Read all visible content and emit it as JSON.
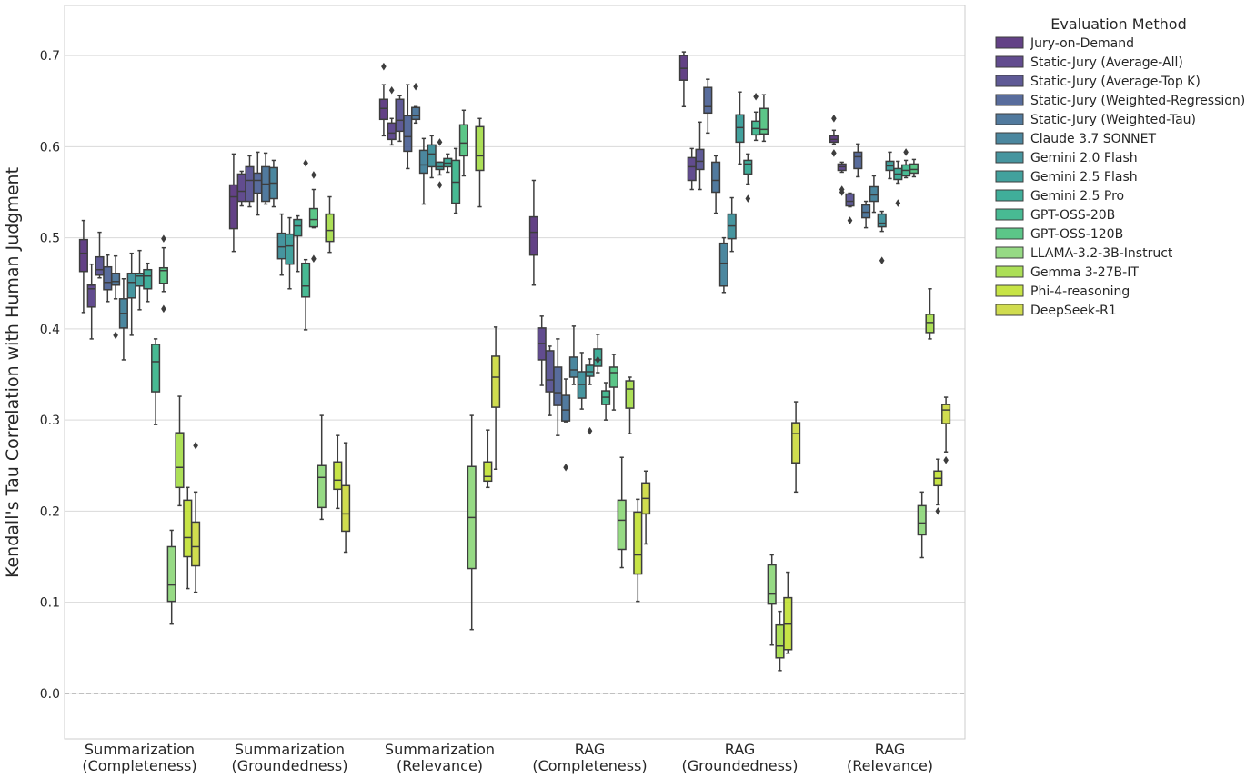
{
  "chart_data": {
    "type": "box",
    "ylabel": "Kendall's Tau Correlation with Human Judgment",
    "xlabel": "",
    "ylim": [
      -0.05,
      0.755
    ],
    "yticks": [
      0.0,
      0.1,
      0.2,
      0.3,
      0.4,
      0.5,
      0.6,
      0.7
    ],
    "ytick_labels": [
      "0.0",
      "0.1",
      "0.2",
      "0.3",
      "0.4",
      "0.5",
      "0.6",
      "0.7"
    ],
    "reference_line": 0.0,
    "grid": "horizontal",
    "legend": {
      "title": "Evaluation Method",
      "placement": "outside-right-top"
    },
    "categories": [
      [
        "Summarization",
        "(Completeness)"
      ],
      [
        "Summarization",
        "(Groundedness)"
      ],
      [
        "Summarization",
        "(Relevance)"
      ],
      [
        "RAG",
        "(Completeness)"
      ],
      [
        "RAG",
        "(Groundedness)"
      ],
      [
        "RAG",
        "(Relevance)"
      ]
    ],
    "series": [
      {
        "name": "Jury-on-Demand",
        "color": "#482071",
        "values": [
          {
            "lw": 0.418,
            "q1": 0.463,
            "med": 0.483,
            "q3": 0.498,
            "uw": 0.519,
            "out": []
          },
          {
            "lw": 0.485,
            "q1": 0.51,
            "med": 0.545,
            "q3": 0.558,
            "uw": 0.592,
            "out": []
          },
          {
            "lw": 0.612,
            "q1": 0.63,
            "med": 0.642,
            "q3": 0.652,
            "uw": 0.668,
            "out": [
              0.688
            ]
          },
          {
            "lw": 0.448,
            "q1": 0.481,
            "med": 0.506,
            "q3": 0.523,
            "uw": 0.563,
            "out": []
          },
          {
            "lw": 0.644,
            "q1": 0.673,
            "med": 0.686,
            "q3": 0.7,
            "uw": 0.704,
            "out": []
          },
          {
            "lw": 0.603,
            "q1": 0.605,
            "med": 0.608,
            "q3": 0.612,
            "uw": 0.618,
            "out": [
              0.631,
              0.593
            ]
          }
        ]
      },
      {
        "name": "Static-Jury (Average-All)",
        "color": "#472d7b",
        "values": [
          {
            "lw": 0.389,
            "q1": 0.424,
            "med": 0.444,
            "q3": 0.448,
            "uw": 0.471,
            "out": []
          },
          {
            "lw": 0.535,
            "q1": 0.54,
            "med": 0.551,
            "q3": 0.57,
            "uw": 0.573,
            "out": []
          },
          {
            "lw": 0.602,
            "q1": 0.608,
            "med": 0.615,
            "q3": 0.626,
            "uw": 0.631,
            "out": [
              0.662
            ]
          },
          {
            "lw": 0.338,
            "q1": 0.366,
            "med": 0.384,
            "q3": 0.401,
            "uw": 0.414,
            "out": []
          },
          {
            "lw": 0.553,
            "q1": 0.563,
            "med": 0.578,
            "q3": 0.588,
            "uw": 0.598,
            "out": []
          },
          {
            "lw": 0.572,
            "q1": 0.574,
            "med": 0.578,
            "q3": 0.581,
            "uw": 0.583,
            "out": [
              0.553,
              0.55
            ]
          }
        ]
      },
      {
        "name": "Static-Jury (Average-Top K)",
        "color": "#433d84",
        "values": [
          {
            "lw": 0.456,
            "q1": 0.459,
            "med": 0.465,
            "q3": 0.479,
            "uw": 0.506,
            "out": []
          },
          {
            "lw": 0.534,
            "q1": 0.54,
            "med": 0.563,
            "q3": 0.578,
            "uw": 0.59,
            "out": []
          },
          {
            "lw": 0.606,
            "q1": 0.617,
            "med": 0.629,
            "q3": 0.652,
            "uw": 0.656,
            "out": []
          },
          {
            "lw": 0.305,
            "q1": 0.331,
            "med": 0.344,
            "q3": 0.376,
            "uw": 0.381,
            "out": []
          },
          {
            "lw": 0.553,
            "q1": 0.575,
            "med": 0.584,
            "q3": 0.597,
            "uw": 0.627,
            "out": []
          },
          {
            "lw": 0.534,
            "q1": 0.535,
            "med": 0.54,
            "q3": 0.548,
            "uw": 0.549,
            "out": [
              0.519
            ]
          }
        ]
      },
      {
        "name": "Static-Jury (Weighted-Regression)",
        "color": "#3b528b",
        "values": [
          {
            "lw": 0.43,
            "q1": 0.443,
            "med": 0.451,
            "q3": 0.468,
            "uw": 0.481,
            "out": []
          },
          {
            "lw": 0.525,
            "q1": 0.549,
            "med": 0.563,
            "q3": 0.571,
            "uw": 0.594,
            "out": []
          },
          {
            "lw": 0.576,
            "q1": 0.595,
            "med": 0.611,
            "q3": 0.634,
            "uw": 0.668,
            "out": []
          },
          {
            "lw": 0.283,
            "q1": 0.316,
            "med": 0.33,
            "q3": 0.358,
            "uw": 0.389,
            "out": []
          },
          {
            "lw": 0.615,
            "q1": 0.637,
            "med": 0.644,
            "q3": 0.665,
            "uw": 0.674,
            "out": []
          },
          {
            "lw": 0.567,
            "q1": 0.576,
            "med": 0.589,
            "q3": 0.594,
            "uw": 0.603,
            "out": []
          }
        ]
      },
      {
        "name": "Static-Jury (Weighted-Tau)",
        "color": "#33638d",
        "values": [
          {
            "lw": 0.433,
            "q1": 0.448,
            "med": 0.452,
            "q3": 0.461,
            "uw": 0.48,
            "out": [
              0.393
            ]
          },
          {
            "lw": 0.537,
            "q1": 0.54,
            "med": 0.559,
            "q3": 0.578,
            "uw": 0.593,
            "out": []
          },
          {
            "lw": 0.626,
            "q1": 0.63,
            "med": 0.634,
            "q3": 0.643,
            "uw": 0.644,
            "out": [
              0.666
            ]
          },
          {
            "lw": 0.298,
            "q1": 0.299,
            "med": 0.311,
            "q3": 0.327,
            "uw": 0.345,
            "out": [
              0.248
            ]
          },
          {
            "lw": 0.527,
            "q1": 0.55,
            "med": 0.563,
            "q3": 0.583,
            "uw": 0.59,
            "out": []
          },
          {
            "lw": 0.511,
            "q1": 0.522,
            "med": 0.528,
            "q3": 0.536,
            "uw": 0.54,
            "out": []
          }
        ]
      },
      {
        "name": "Claude 3.7 SONNET",
        "color": "#2c728e",
        "values": [
          {
            "lw": 0.366,
            "q1": 0.401,
            "med": 0.417,
            "q3": 0.433,
            "uw": 0.455,
            "out": []
          },
          {
            "lw": 0.534,
            "q1": 0.543,
            "med": 0.56,
            "q3": 0.577,
            "uw": 0.585,
            "out": []
          },
          {
            "lw": 0.537,
            "q1": 0.571,
            "med": 0.58,
            "q3": 0.596,
            "uw": 0.609,
            "out": []
          },
          {
            "lw": 0.339,
            "q1": 0.347,
            "med": 0.355,
            "q3": 0.369,
            "uw": 0.403,
            "out": []
          },
          {
            "lw": 0.44,
            "q1": 0.447,
            "med": 0.472,
            "q3": 0.494,
            "uw": 0.5,
            "out": []
          },
          {
            "lw": 0.528,
            "q1": 0.54,
            "med": 0.547,
            "q3": 0.556,
            "uw": 0.568,
            "out": []
          }
        ]
      },
      {
        "name": "Gemini 2.0 Flash",
        "color": "#26828e",
        "values": [
          {
            "lw": 0.393,
            "q1": 0.434,
            "med": 0.451,
            "q3": 0.461,
            "uw": 0.483,
            "out": []
          },
          {
            "lw": 0.459,
            "q1": 0.477,
            "med": 0.49,
            "q3": 0.505,
            "uw": 0.526,
            "out": []
          },
          {
            "lw": 0.566,
            "q1": 0.578,
            "med": 0.592,
            "q3": 0.602,
            "uw": 0.612,
            "out": []
          },
          {
            "lw": 0.312,
            "q1": 0.324,
            "med": 0.339,
            "q3": 0.353,
            "uw": 0.374,
            "out": []
          },
          {
            "lw": 0.485,
            "q1": 0.499,
            "med": 0.513,
            "q3": 0.526,
            "uw": 0.544,
            "out": []
          },
          {
            "lw": 0.507,
            "q1": 0.512,
            "med": 0.516,
            "q3": 0.526,
            "uw": 0.529,
            "out": [
              0.475
            ]
          }
        ]
      },
      {
        "name": "Gemini 2.5 Flash",
        "color": "#21918c",
        "values": [
          {
            "lw": 0.421,
            "q1": 0.447,
            "med": 0.458,
            "q3": 0.461,
            "uw": 0.486,
            "out": []
          },
          {
            "lw": 0.444,
            "q1": 0.471,
            "med": 0.491,
            "q3": 0.504,
            "uw": 0.522,
            "out": []
          },
          {
            "lw": 0.569,
            "q1": 0.575,
            "med": 0.578,
            "q3": 0.583,
            "uw": 0.583,
            "out": [
              0.558,
              0.605
            ]
          },
          {
            "lw": 0.339,
            "q1": 0.348,
            "med": 0.353,
            "q3": 0.36,
            "uw": 0.367,
            "out": [
              0.288
            ]
          },
          {
            "lw": 0.581,
            "q1": 0.605,
            "med": 0.621,
            "q3": 0.635,
            "uw": 0.66,
            "out": []
          },
          {
            "lw": 0.565,
            "q1": 0.574,
            "med": 0.579,
            "q3": 0.584,
            "uw": 0.594,
            "out": []
          }
        ]
      },
      {
        "name": "Gemini 2.5 Pro",
        "color": "#1fa088",
        "values": [
          {
            "lw": 0.43,
            "q1": 0.444,
            "med": 0.458,
            "q3": 0.465,
            "uw": 0.472,
            "out": []
          },
          {
            "lw": 0.463,
            "q1": 0.502,
            "med": 0.513,
            "q3": 0.52,
            "uw": 0.524,
            "out": []
          },
          {
            "lw": 0.572,
            "q1": 0.578,
            "med": 0.582,
            "q3": 0.587,
            "uw": 0.592,
            "out": []
          },
          {
            "lw": 0.352,
            "q1": 0.359,
            "med": 0.366,
            "q3": 0.378,
            "uw": 0.394,
            "out": [
              0.366
            ]
          },
          {
            "lw": 0.559,
            "q1": 0.57,
            "med": 0.581,
            "q3": 0.585,
            "uw": 0.592,
            "out": [
              0.543
            ]
          },
          {
            "lw": 0.56,
            "q1": 0.564,
            "med": 0.57,
            "q3": 0.576,
            "uw": 0.584,
            "out": [
              0.538
            ]
          }
        ]
      },
      {
        "name": "GPT-OSS-20B",
        "color": "#28ae80",
        "values": [
          {
            "lw": 0.295,
            "q1": 0.331,
            "med": 0.364,
            "q3": 0.383,
            "uw": 0.389,
            "out": []
          },
          {
            "lw": 0.399,
            "q1": 0.435,
            "med": 0.447,
            "q3": 0.472,
            "uw": 0.476,
            "out": [
              0.582
            ]
          },
          {
            "lw": 0.527,
            "q1": 0.538,
            "med": 0.561,
            "q3": 0.585,
            "uw": 0.598,
            "out": []
          },
          {
            "lw": 0.3,
            "q1": 0.317,
            "med": 0.325,
            "q3": 0.332,
            "uw": 0.341,
            "out": []
          },
          {
            "lw": 0.607,
            "q1": 0.613,
            "med": 0.62,
            "q3": 0.628,
            "uw": 0.638,
            "out": [
              0.655
            ]
          },
          {
            "lw": 0.566,
            "q1": 0.568,
            "med": 0.574,
            "q3": 0.58,
            "uw": 0.585,
            "out": [
              0.594
            ]
          }
        ]
      },
      {
        "name": "GPT-OSS-120B",
        "color": "#3fbc73",
        "values": [
          {
            "lw": 0.441,
            "q1": 0.45,
            "med": 0.464,
            "q3": 0.467,
            "uw": 0.489,
            "out": [
              0.499,
              0.422
            ]
          },
          {
            "lw": 0.511,
            "q1": 0.512,
            "med": 0.52,
            "q3": 0.532,
            "uw": 0.553,
            "out": [
              0.569,
              0.477
            ]
          },
          {
            "lw": 0.568,
            "q1": 0.59,
            "med": 0.604,
            "q3": 0.624,
            "uw": 0.64,
            "out": []
          },
          {
            "lw": 0.311,
            "q1": 0.336,
            "med": 0.352,
            "q3": 0.358,
            "uw": 0.372,
            "out": []
          },
          {
            "lw": 0.606,
            "q1": 0.614,
            "med": 0.619,
            "q3": 0.642,
            "uw": 0.657,
            "out": []
          },
          {
            "lw": 0.567,
            "q1": 0.571,
            "med": 0.575,
            "q3": 0.581,
            "uw": 0.586,
            "out": []
          }
        ]
      },
      {
        "name": "LLAMA-3.2-3B-Instruct",
        "color": "#84d46e",
        "values": [
          {
            "lw": 0.076,
            "q1": 0.101,
            "med": 0.119,
            "q3": 0.161,
            "uw": 0.179,
            "out": []
          },
          {
            "lw": 0.191,
            "q1": 0.204,
            "med": 0.237,
            "q3": 0.25,
            "uw": 0.305,
            "out": []
          },
          {
            "lw": 0.07,
            "q1": 0.137,
            "med": 0.193,
            "q3": 0.249,
            "uw": 0.305,
            "out": []
          },
          {
            "lw": 0.138,
            "q1": 0.158,
            "med": 0.19,
            "q3": 0.212,
            "uw": 0.259,
            "out": []
          },
          {
            "lw": 0.053,
            "q1": 0.098,
            "med": 0.109,
            "q3": 0.141,
            "uw": 0.152,
            "out": []
          },
          {
            "lw": 0.149,
            "q1": 0.174,
            "med": 0.187,
            "q3": 0.206,
            "uw": 0.221,
            "out": []
          }
        ]
      },
      {
        "name": "Gemma 3-27B-IT",
        "color": "#9ed93a",
        "values": [
          {
            "lw": 0.206,
            "q1": 0.226,
            "med": 0.248,
            "q3": 0.286,
            "uw": 0.326,
            "out": []
          },
          {
            "lw": 0.484,
            "q1": 0.496,
            "med": 0.508,
            "q3": 0.526,
            "uw": 0.545,
            "out": []
          },
          {
            "lw": 0.534,
            "q1": 0.574,
            "med": 0.59,
            "q3": 0.622,
            "uw": 0.631,
            "out": []
          },
          {
            "lw": 0.285,
            "q1": 0.313,
            "med": 0.334,
            "q3": 0.343,
            "uw": 0.347,
            "out": []
          },
          {
            "lw": 0.025,
            "q1": 0.039,
            "med": 0.052,
            "q3": 0.075,
            "uw": 0.09,
            "out": []
          },
          {
            "lw": 0.389,
            "q1": 0.396,
            "med": 0.407,
            "q3": 0.416,
            "uw": 0.444,
            "out": []
          }
        ]
      },
      {
        "name": "Phi-4-reasoning",
        "color": "#bddf26",
        "values": [
          {
            "lw": 0.115,
            "q1": 0.15,
            "med": 0.171,
            "q3": 0.212,
            "uw": 0.226,
            "out": []
          },
          {
            "lw": 0.203,
            "q1": 0.224,
            "med": 0.234,
            "q3": 0.254,
            "uw": 0.283,
            "out": []
          },
          {
            "lw": 0.226,
            "q1": 0.233,
            "med": 0.238,
            "q3": 0.254,
            "uw": 0.289,
            "out": []
          },
          {
            "lw": 0.101,
            "q1": 0.131,
            "med": 0.152,
            "q3": 0.199,
            "uw": 0.213,
            "out": []
          },
          {
            "lw": 0.044,
            "q1": 0.048,
            "med": 0.076,
            "q3": 0.105,
            "uw": 0.133,
            "out": []
          },
          {
            "lw": 0.207,
            "q1": 0.228,
            "med": 0.236,
            "q3": 0.244,
            "uw": 0.257,
            "out": [
              0.2
            ]
          }
        ]
      },
      {
        "name": "DeepSeek-R1",
        "color": "#c8d630",
        "values": [
          {
            "lw": 0.111,
            "q1": 0.14,
            "med": 0.161,
            "q3": 0.188,
            "uw": 0.221,
            "out": [
              0.272
            ]
          },
          {
            "lw": 0.155,
            "q1": 0.178,
            "med": 0.197,
            "q3": 0.228,
            "uw": 0.275,
            "out": []
          },
          {
            "lw": 0.246,
            "q1": 0.314,
            "med": 0.347,
            "q3": 0.37,
            "uw": 0.402,
            "out": []
          },
          {
            "lw": 0.164,
            "q1": 0.197,
            "med": 0.214,
            "q3": 0.231,
            "uw": 0.244,
            "out": []
          },
          {
            "lw": 0.221,
            "q1": 0.253,
            "med": 0.285,
            "q3": 0.297,
            "uw": 0.32,
            "out": []
          },
          {
            "lw": 0.265,
            "q1": 0.296,
            "med": 0.311,
            "q3": 0.317,
            "uw": 0.325,
            "out": [
              0.256
            ]
          }
        ]
      }
    ]
  }
}
